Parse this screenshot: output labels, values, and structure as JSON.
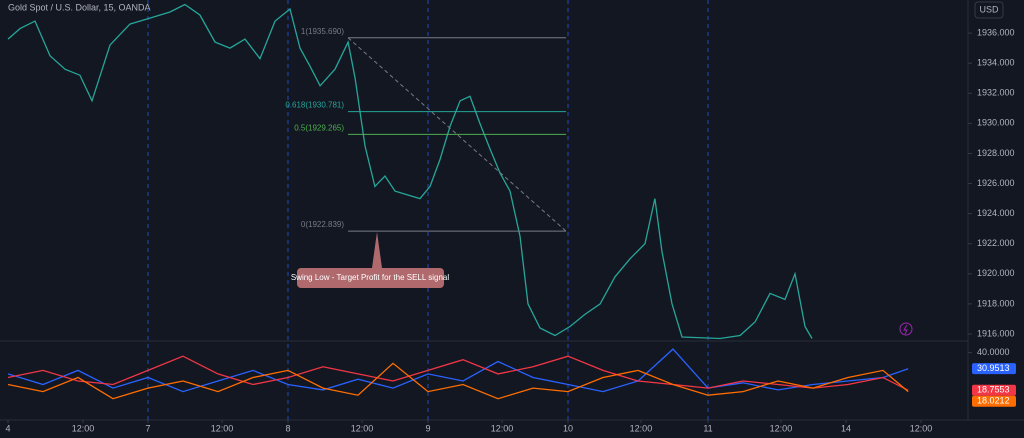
{
  "title": "Gold Spot / U.S. Dollar, 15, OANDA",
  "currency": "USD",
  "callout": "Swing Low - Target Profit for the SELL signal",
  "chart_data": [
    {
      "type": "line",
      "x": [
        0,
        0.086,
        0.193,
        0.3,
        0.407,
        0.514,
        0.6,
        0.729,
        0.871,
        1.014,
        1.157,
        1.264,
        1.371,
        1.479,
        1.586,
        1.693,
        1.8,
        1.907,
        2.014,
        2.086,
        2.157,
        2.229,
        2.336,
        2.429,
        2.479,
        2.55,
        2.621,
        2.693,
        2.764,
        2.836,
        2.943,
        3.014,
        3.086,
        3.157,
        3.229,
        3.3,
        3.371,
        3.443,
        3.514,
        3.586,
        3.657,
        3.714,
        3.8,
        3.907,
        4.014,
        4.121,
        4.229,
        4.336,
        4.443,
        4.55,
        4.621,
        4.671,
        4.743,
        4.814,
        5.086,
        5.229,
        5.336,
        5.443,
        5.55,
        5.621,
        5.693,
        5.743
      ],
      "values": [
        1935.6,
        1936.3,
        1936.8,
        1934.5,
        1933.6,
        1933.2,
        1931.5,
        1935.2,
        1936.6,
        1937.0,
        1937.4,
        1937.9,
        1937.2,
        1935.4,
        1935.0,
        1935.6,
        1934.3,
        1936.8,
        1937.6,
        1935.0,
        1933.8,
        1932.5,
        1933.6,
        1935.4,
        1933.0,
        1928.5,
        1925.8,
        1926.5,
        1925.5,
        1925.3,
        1925.0,
        1925.8,
        1927.6,
        1929.8,
        1931.5,
        1931.8,
        1930.0,
        1928.3,
        1926.7,
        1925.5,
        1922.5,
        1918.0,
        1916.4,
        1915.9,
        1916.5,
        1917.3,
        1918.0,
        1919.8,
        1921.0,
        1922.0,
        1925.0,
        1921.5,
        1918.0,
        1915.8,
        1915.7,
        1915.9,
        1916.8,
        1918.7,
        1918.3,
        1920.0,
        1916.5,
        1915.7
      ],
      "color": "#26a69a",
      "xlim": [
        -0.057,
        6.857
      ],
      "ylim": [
        1915.6,
        1938.2
      ],
      "yticks": [
        {
          "value": 1916,
          "label": "1916.000"
        },
        {
          "value": 1918,
          "label": "1918.000"
        },
        {
          "value": 1920,
          "label": "1920.000"
        },
        {
          "value": 1922,
          "label": "1922.000"
        },
        {
          "value": 1924,
          "label": "1924.000"
        },
        {
          "value": 1926,
          "label": "1926.000"
        },
        {
          "value": 1928,
          "label": "1928.000"
        },
        {
          "value": 1930,
          "label": "1930.000"
        },
        {
          "value": 1932,
          "label": "1932.000"
        },
        {
          "value": 1934,
          "label": "1934.000"
        },
        {
          "value": 1936,
          "label": "1936.000"
        }
      ],
      "xticks": [
        {
          "value": 0,
          "label": "4"
        },
        {
          "value": 0.536,
          "label": "12:00"
        },
        {
          "value": 1,
          "label": "7"
        },
        {
          "value": 1.529,
          "label": "12:00"
        },
        {
          "value": 2,
          "label": "8"
        },
        {
          "value": 2.529,
          "label": "12:00"
        },
        {
          "value": 3,
          "label": "9"
        },
        {
          "value": 3.529,
          "label": "12:00"
        },
        {
          "value": 4,
          "label": "10"
        },
        {
          "value": 4.521,
          "label": "12:00"
        },
        {
          "value": 5,
          "label": "11"
        },
        {
          "value": 5.521,
          "label": "12:00"
        },
        {
          "value": 5.986,
          "label": "14"
        },
        {
          "value": 6.521,
          "label": "12:00"
        }
      ],
      "session_breaks": true,
      "fib_levels": [
        {
          "label": "1(1935.690)",
          "value": 1935.69,
          "color": "#787b86"
        },
        {
          "label": "0.618(1930.781)",
          "value": 1930.781,
          "color": "#26a69a"
        },
        {
          "label": "0.5(1929.265)",
          "value": 1929.265,
          "color": "#4caf50"
        },
        {
          "label": "0(1922.839)",
          "value": 1922.839,
          "color": "#787b86"
        }
      ],
      "fib_x": [
        2.429,
        3.986
      ]
    },
    {
      "type": "line",
      "x": [
        0,
        0.25,
        0.5,
        0.75,
        1,
        1.25,
        1.5,
        1.75,
        2,
        2.25,
        2.5,
        2.75,
        3,
        3.25,
        3.5,
        3.75,
        4,
        4.25,
        4.5,
        4.75,
        5,
        5.25,
        5.5,
        5.75,
        6,
        6.25,
        6.43
      ],
      "series": [
        {
          "color": "#2962ff",
          "values": [
            28,
            22,
            30,
            20,
            26,
            18,
            24,
            30,
            22,
            19,
            25,
            20,
            28,
            24,
            35,
            26,
            22,
            18,
            24,
            42,
            20,
            23,
            19,
            22,
            24,
            26,
            30.9513
          ]
        },
        {
          "color": "#f23645",
          "values": [
            26,
            30,
            24,
            22,
            30,
            38,
            28,
            22,
            26,
            32,
            28,
            24,
            30,
            36,
            28,
            32,
            38,
            30,
            24,
            22,
            20,
            24,
            22,
            20,
            22,
            26,
            18.7553
          ]
        },
        {
          "color": "#ff6d00",
          "values": [
            22,
            18,
            26,
            14,
            20,
            24,
            18,
            26,
            30,
            20,
            16,
            34,
            18,
            22,
            14,
            20,
            18,
            26,
            30,
            22,
            16,
            18,
            24,
            20,
            26,
            30,
            18.0212
          ]
        }
      ],
      "xlim": [
        -0.057,
        6.857
      ],
      "ylim": [
        2,
        46
      ],
      "yticks": [
        {
          "value": 40,
          "label": "40.0000"
        }
      ]
    }
  ]
}
